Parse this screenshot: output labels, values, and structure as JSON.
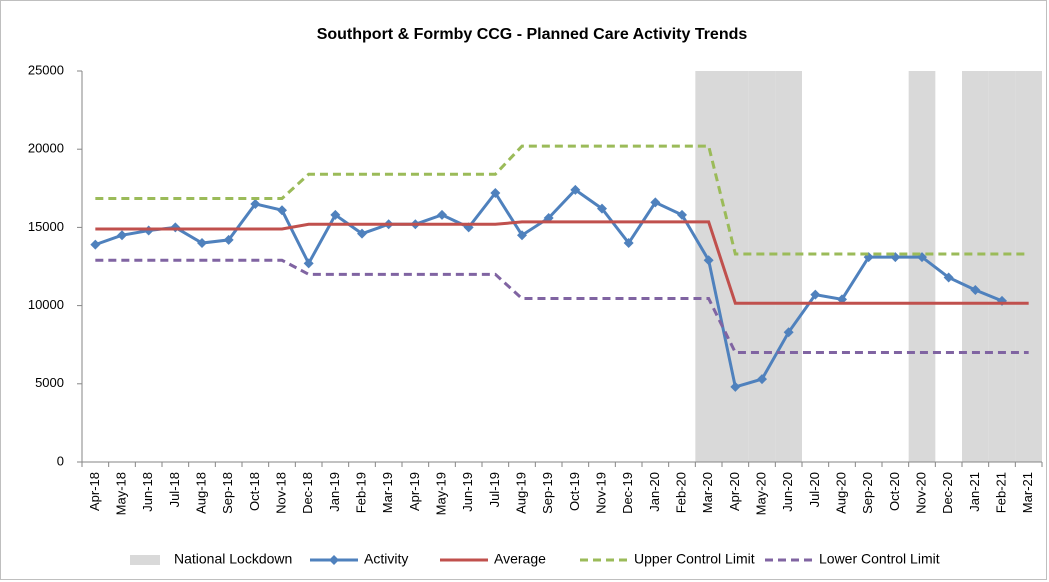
{
  "chart_data": {
    "type": "line",
    "title": "Southport & Formby CCG - Planned Care Activity Trends",
    "categories": [
      "Apr-18",
      "May-18",
      "Jun-18",
      "Jul-18",
      "Aug-18",
      "Sep-18",
      "Oct-18",
      "Nov-18",
      "Dec-18",
      "Jan-19",
      "Feb-19",
      "Mar-19",
      "Apr-19",
      "May-19",
      "Jun-19",
      "Jul-19",
      "Aug-19",
      "Sep-19",
      "Oct-19",
      "Nov-19",
      "Dec-19",
      "Jan-20",
      "Feb-20",
      "Mar-20",
      "Apr-20",
      "May-20",
      "Jun-20",
      "Jul-20",
      "Aug-20",
      "Sep-20",
      "Oct-20",
      "Nov-20",
      "Dec-20",
      "Jan-21",
      "Feb-21",
      "Mar-21"
    ],
    "series": [
      {
        "name": "National Lockdown",
        "type": "bar",
        "color": "#d9d9d9",
        "values": [
          null,
          null,
          null,
          null,
          null,
          null,
          null,
          null,
          null,
          null,
          null,
          null,
          null,
          null,
          null,
          null,
          null,
          null,
          null,
          null,
          null,
          null,
          null,
          25000,
          25000,
          25000,
          25000,
          null,
          null,
          null,
          null,
          25000,
          null,
          25000,
          25000,
          25000
        ]
      },
      {
        "name": "Activity",
        "type": "line",
        "color": "#4f81bd",
        "marker": true,
        "values": [
          13900,
          14500,
          14800,
          15000,
          14000,
          14200,
          16500,
          16100,
          12700,
          15800,
          14600,
          15200,
          15200,
          15800,
          15000,
          17200,
          14500,
          15600,
          17400,
          16200,
          14000,
          16600,
          15800,
          12900,
          4800,
          5300,
          8300,
          10700,
          10400,
          13100,
          13100,
          13100,
          11800,
          11000,
          10300,
          null
        ]
      },
      {
        "name": "Average",
        "type": "line",
        "color": "#c0504d",
        "values": [
          14900,
          14900,
          14900,
          14900,
          14900,
          14900,
          14900,
          14900,
          15200,
          15200,
          15200,
          15200,
          15200,
          15200,
          15200,
          15200,
          15350,
          15350,
          15350,
          15350,
          15350,
          15350,
          15350,
          15350,
          10150,
          10150,
          10150,
          10150,
          10150,
          10150,
          10150,
          10150,
          10150,
          10150,
          10150,
          10150
        ]
      },
      {
        "name": "Upper Control Limit",
        "type": "line",
        "dashed": true,
        "color": "#9bbb59",
        "values": [
          16850,
          16850,
          16850,
          16850,
          16850,
          16850,
          16850,
          16850,
          18400,
          18400,
          18400,
          18400,
          18400,
          18400,
          18400,
          18400,
          20200,
          20200,
          20200,
          20200,
          20200,
          20200,
          20200,
          20200,
          13300,
          13300,
          13300,
          13300,
          13300,
          13300,
          13300,
          13300,
          13300,
          13300,
          13300,
          13300
        ]
      },
      {
        "name": "Lower Control Limit",
        "type": "line",
        "dashed": true,
        "color": "#8064a2",
        "values": [
          12900,
          12900,
          12900,
          12900,
          12900,
          12900,
          12900,
          12900,
          12000,
          12000,
          12000,
          12000,
          12000,
          12000,
          12000,
          12000,
          10450,
          10450,
          10450,
          10450,
          10450,
          10450,
          10450,
          10450,
          7000,
          7000,
          7000,
          7000,
          7000,
          7000,
          7000,
          7000,
          7000,
          7000,
          7000,
          7000
        ]
      }
    ],
    "ylim": [
      0,
      25000
    ],
    "yticks": [
      0,
      5000,
      10000,
      15000,
      20000,
      25000
    ],
    "grid": false,
    "legend": "bottom"
  }
}
